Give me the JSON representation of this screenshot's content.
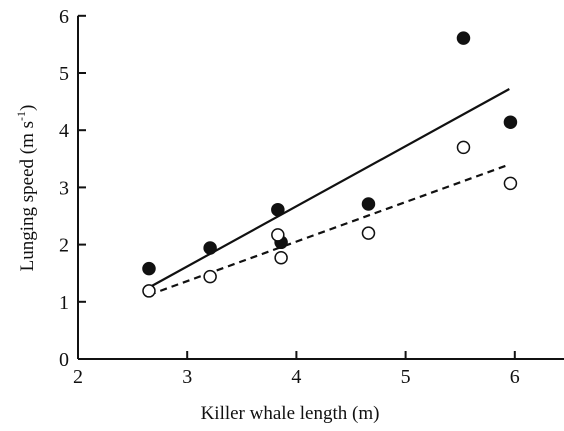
{
  "chart_data": {
    "type": "scatter",
    "xlabel": "Killer whale length (m)",
    "ylabel": {
      "main": "Lunging speed (m s",
      "superscript": "-1",
      "close": ")"
    },
    "xlim": [
      2,
      6.5
    ],
    "ylim": [
      0,
      6
    ],
    "xticks": [
      2,
      3,
      4,
      5,
      6
    ],
    "yticks": [
      0,
      1,
      2,
      3,
      4,
      5,
      6
    ],
    "grid": false,
    "series": [
      {
        "marker": "filled-circle",
        "color": "#111111",
        "points": [
          {
            "x": 2.65,
            "y": 1.58
          },
          {
            "x": 3.21,
            "y": 1.94
          },
          {
            "x": 3.83,
            "y": 2.61
          },
          {
            "x": 3.86,
            "y": 2.04
          },
          {
            "x": 4.66,
            "y": 2.71
          },
          {
            "x": 5.53,
            "y": 5.61
          },
          {
            "x": 5.96,
            "y": 4.14
          }
        ],
        "fit_line": {
          "style": "solid",
          "from": {
            "x": 2.65,
            "y": 1.25
          },
          "to": {
            "x": 5.95,
            "y": 4.72
          }
        }
      },
      {
        "marker": "open-circle",
        "color": "#111111",
        "points": [
          {
            "x": 2.65,
            "y": 1.19
          },
          {
            "x": 3.21,
            "y": 1.44
          },
          {
            "x": 3.83,
            "y": 2.17
          },
          {
            "x": 3.86,
            "y": 1.77
          },
          {
            "x": 4.66,
            "y": 2.2
          },
          {
            "x": 5.53,
            "y": 3.7
          },
          {
            "x": 5.96,
            "y": 3.07
          }
        ],
        "fit_line": {
          "style": "dashed",
          "from": {
            "x": 2.65,
            "y": 1.12
          },
          "to": {
            "x": 5.95,
            "y": 3.4
          }
        }
      }
    ]
  }
}
